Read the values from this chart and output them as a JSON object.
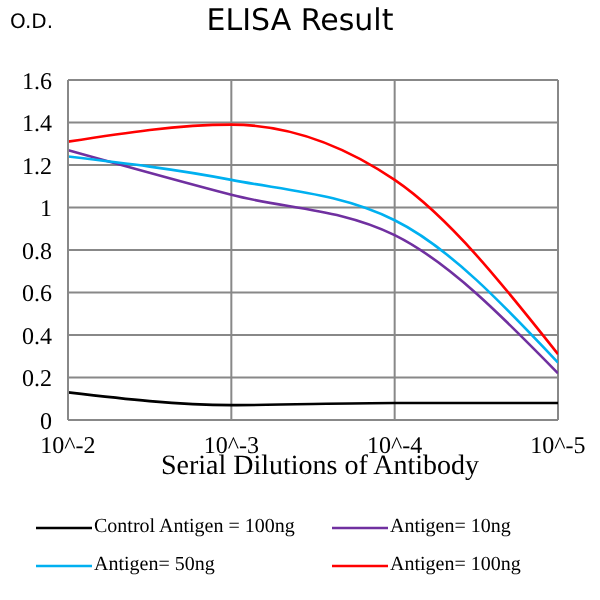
{
  "chart_data": {
    "type": "line",
    "title": "ELISA Result",
    "ylabel": "O.D.",
    "xlabel": "Serial Dilutions of Antibody",
    "categories": [
      "10^-2",
      "10^-3",
      "10^-4",
      "10^-5"
    ],
    "series": [
      {
        "name": "Control Antigen = 100ng",
        "color": "#000000",
        "values": [
          0.13,
          0.07,
          0.08,
          0.08
        ]
      },
      {
        "name": "Antigen= 10ng",
        "color": "#7030a0",
        "values": [
          1.27,
          1.06,
          0.87,
          0.22
        ]
      },
      {
        "name": "Antigen= 50ng",
        "color": "#00b0f0",
        "values": [
          1.24,
          1.13,
          0.94,
          0.27
        ]
      },
      {
        "name": "Antigen= 100ng",
        "color": "#ff0000",
        "values": [
          1.31,
          1.39,
          1.13,
          0.31
        ]
      }
    ],
    "ylim": [
      0,
      1.6
    ],
    "yticks": [
      0,
      0.2,
      0.4,
      0.6,
      0.8,
      1,
      1.2,
      1.4,
      1.6
    ],
    "grid": true,
    "legend": "bottom",
    "marker": "none",
    "line_style": "solid"
  }
}
